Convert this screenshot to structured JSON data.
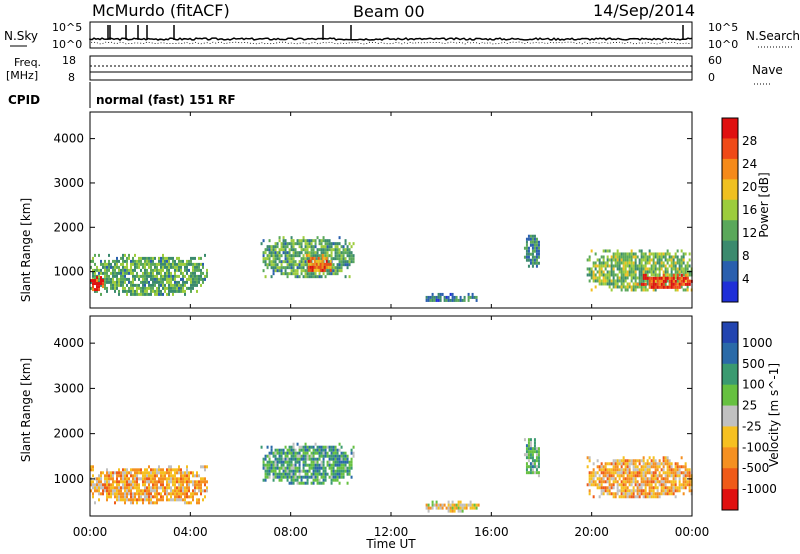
{
  "header": {
    "station": "McMurdo (fitACF)",
    "beam": "Beam 00",
    "date": "14/Sep/2014"
  },
  "top_panels": {
    "nsky_label": "N.Sky",
    "nsky_ticks": [
      "10^5",
      "10^0"
    ],
    "nsearch_label": "N.Search",
    "nsearch_ticks": [
      "10^5",
      "10^0"
    ],
    "freq_label": "Freq.",
    "freq_unit": "[MHz]",
    "freq_ticks": [
      "18",
      "8"
    ],
    "nave_label": "Nave",
    "nave_ticks": [
      "60",
      "0"
    ],
    "cpid_label": "CPID",
    "cpid_value": "normal (fast) 151 RF"
  },
  "colors": {
    "power_scale": [
      "#1f2fd8",
      "#2a5fae",
      "#3b8a6e",
      "#5aa85a",
      "#9ccc3c",
      "#f0c020",
      "#f58a1a",
      "#ef4a18",
      "#e01010"
    ],
    "velocity_scale": [
      "#2244b0",
      "#2a6aa8",
      "#3a9a70",
      "#66c040",
      "#c0c0c0",
      "#f6c020",
      "#f59020",
      "#ef5a18",
      "#e01010"
    ]
  },
  "chart_data": [
    {
      "type": "heatmap",
      "name": "power",
      "ylabel": "Slant Range [km]",
      "ylim": [
        180,
        4600
      ],
      "y_ticks": [
        "4000",
        "3000",
        "2000",
        "1000"
      ],
      "colorbar_label": "Power [dB]",
      "colorbar_ticks": [
        "28",
        "24",
        "20",
        "16",
        "12",
        "8",
        "4"
      ],
      "clim": [
        0,
        32
      ],
      "regions": [
        {
          "t0": 0.0,
          "t1": 4.7,
          "r0": 500,
          "r1": 1400,
          "v": 12
        },
        {
          "t0": 0.0,
          "t1": 0.5,
          "r0": 600,
          "r1": 900,
          "v": 28
        },
        {
          "t0": 6.8,
          "t1": 10.5,
          "r0": 900,
          "r1": 1800,
          "v": 12
        },
        {
          "t0": 8.6,
          "t1": 9.6,
          "r0": 1000,
          "r1": 1400,
          "v": 24
        },
        {
          "t0": 13.3,
          "t1": 15.5,
          "r0": 320,
          "r1": 520,
          "v": 8
        },
        {
          "t0": 17.3,
          "t1": 17.9,
          "r0": 1100,
          "r1": 1900,
          "v": 9
        },
        {
          "t0": 19.8,
          "t1": 24.0,
          "r0": 600,
          "r1": 1500,
          "v": 14
        },
        {
          "t0": 21.8,
          "t1": 24.0,
          "r0": 650,
          "r1": 950,
          "v": 28
        }
      ]
    },
    {
      "type": "heatmap",
      "name": "velocity",
      "ylabel": "Slant Range [km]",
      "ylim": [
        180,
        4600
      ],
      "y_ticks": [
        "4000",
        "3000",
        "2000",
        "1000"
      ],
      "colorbar_label": "Velocity [m s^-1]",
      "colorbar_ticks": [
        "1000",
        "500",
        "100",
        "25",
        "-25",
        "-100",
        "-500",
        "-1000"
      ],
      "clim": [
        -1000,
        1000
      ],
      "regions": [
        {
          "t0": 0.0,
          "t1": 4.7,
          "r0": 500,
          "r1": 1300,
          "v": -300
        },
        {
          "t0": 6.8,
          "t1": 10.5,
          "r0": 900,
          "r1": 1800,
          "v": 400
        },
        {
          "t0": 13.3,
          "t1": 15.5,
          "r0": 320,
          "r1": 520,
          "v": -100
        },
        {
          "t0": 17.3,
          "t1": 17.9,
          "r0": 1100,
          "r1": 1900,
          "v": 300
        },
        {
          "t0": 19.8,
          "t1": 24.0,
          "r0": 600,
          "r1": 1500,
          "v": -300
        }
      ]
    }
  ],
  "x_axis": {
    "label": "Time UT",
    "ticks": [
      "00:00",
      "04:00",
      "08:00",
      "12:00",
      "16:00",
      "20:00",
      "00:00"
    ],
    "range_hours": [
      0,
      24
    ]
  }
}
